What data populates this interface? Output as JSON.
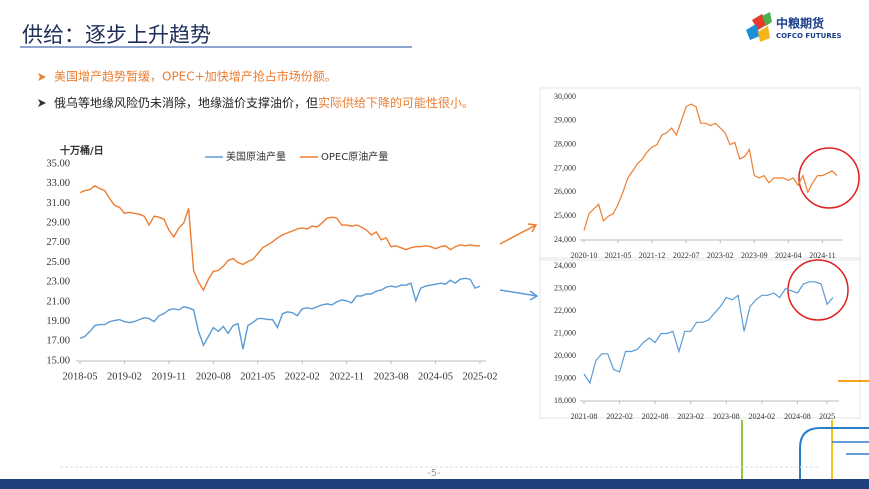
{
  "header": {
    "title": "供给：逐步上升趋势"
  },
  "logo": {
    "name": "中粮期货",
    "english": "COFCO FUTURES"
  },
  "bullets": [
    {
      "text": "美国增产趋势暂缓，OPEC+加快增产抢占市场份额。"
    },
    {
      "text": "俄乌等地缘风险仍未消除，地缘溢价支撑油价，但",
      "highlight": "实际供给下降的可能性很小。"
    }
  ],
  "page_number": "-5-",
  "chart_data": [
    {
      "type": "line",
      "y_label": "十万桶/日",
      "legend": "top",
      "categories": [
        "2018-05",
        null,
        null,
        null,
        null,
        null,
        null,
        null,
        null,
        "2019-02",
        null,
        null,
        null,
        null,
        null,
        null,
        null,
        null,
        "2019-11",
        null,
        null,
        null,
        null,
        null,
        null,
        null,
        null,
        "2020-08",
        null,
        null,
        null,
        null,
        null,
        null,
        null,
        null,
        "2021-05",
        null,
        null,
        null,
        null,
        null,
        null,
        null,
        null,
        "2022-02",
        null,
        null,
        null,
        null,
        null,
        null,
        null,
        null,
        "2022-11",
        null,
        null,
        null,
        null,
        null,
        null,
        null,
        null,
        "2023-08",
        null,
        null,
        null,
        null,
        null,
        null,
        null,
        null,
        "2024-05",
        null,
        null,
        null,
        null,
        null,
        null,
        null,
        null,
        "2025-02"
      ],
      "series": [
        {
          "name": "美国原油产量",
          "color": "#5b9bd5",
          "values": [
            17.3,
            17.5,
            18.0,
            18.6,
            18.7,
            18.7,
            19.0,
            19.1,
            19.2,
            19.0,
            18.9,
            19.0,
            19.2,
            19.4,
            19.3,
            19.0,
            19.6,
            19.8,
            20.2,
            20.3,
            20.2,
            20.5,
            20.4,
            20.2,
            18.0,
            16.6,
            17.5,
            18.4,
            18.0,
            18.5,
            17.8,
            18.6,
            18.8,
            16.2,
            18.6,
            18.9,
            19.3,
            19.3,
            19.2,
            19.2,
            18.4,
            19.8,
            20.0,
            19.9,
            19.6,
            20.3,
            20.4,
            20.3,
            20.5,
            20.7,
            20.8,
            20.7,
            21.0,
            21.2,
            21.1,
            20.9,
            21.6,
            21.6,
            21.8,
            21.8,
            22.1,
            22.2,
            22.5,
            22.6,
            22.5,
            22.7,
            22.7,
            22.9,
            21.1,
            22.4,
            22.6,
            22.7,
            22.8,
            22.9,
            22.8,
            23.2,
            22.9,
            23.3,
            23.4,
            23.3,
            22.4,
            22.6
          ]
        },
        {
          "name": "OPEC原油产量",
          "color": "#ed7d31",
          "values": [
            32.1,
            32.3,
            32.4,
            32.8,
            32.5,
            32.3,
            31.5,
            30.8,
            30.6,
            30.0,
            30.1,
            30.0,
            29.9,
            29.7,
            28.8,
            29.7,
            29.6,
            29.4,
            28.3,
            27.6,
            28.5,
            29.0,
            30.5,
            24.2,
            23.0,
            22.2,
            23.3,
            24.1,
            24.2,
            24.6,
            25.2,
            25.4,
            25.0,
            24.8,
            25.1,
            25.3,
            25.9,
            26.5,
            26.8,
            27.1,
            27.5,
            27.8,
            28.0,
            28.2,
            28.4,
            28.5,
            28.4,
            28.7,
            28.6,
            29.0,
            29.5,
            29.6,
            29.5,
            28.8,
            28.8,
            28.7,
            28.8,
            28.6,
            28.3,
            27.8,
            28.1,
            27.3,
            27.5,
            26.6,
            26.7,
            26.5,
            26.3,
            26.5,
            26.6,
            26.6,
            26.7,
            26.6,
            26.4,
            26.6,
            26.7,
            26.3,
            26.6,
            26.8,
            26.7,
            26.8,
            26.7,
            26.7
          ]
        }
      ],
      "ylim": [
        15,
        35
      ],
      "yticks": [
        {
          "value": 15,
          "label": "15.00"
        },
        {
          "value": 17,
          "label": "17.00"
        },
        {
          "value": 19,
          "label": "19.00"
        },
        {
          "value": 21,
          "label": "21.00"
        },
        {
          "value": 23,
          "label": "23.00"
        },
        {
          "value": 25,
          "label": "25.00"
        },
        {
          "value": 27,
          "label": "27.00"
        },
        {
          "value": 29,
          "label": "29.00"
        },
        {
          "value": 31,
          "label": "31.00"
        },
        {
          "value": 33,
          "label": "33.00"
        },
        {
          "value": 35,
          "label": "35.00"
        }
      ]
    },
    {
      "type": "line",
      "categories": [
        "2020-10",
        null,
        null,
        null,
        null,
        null,
        null,
        "2021-05",
        null,
        null,
        null,
        null,
        null,
        null,
        "2021-12",
        null,
        null,
        null,
        null,
        null,
        null,
        "2022-07",
        null,
        null,
        null,
        null,
        null,
        null,
        "2023-02",
        null,
        null,
        null,
        null,
        null,
        null,
        "2023-09",
        null,
        null,
        null,
        null,
        null,
        null,
        "2024-04",
        null,
        null,
        null,
        null,
        null,
        null,
        "2024-11",
        null,
        null,
        null
      ],
      "color": "#ed7d31",
      "values": [
        24400,
        25100,
        25300,
        25500,
        24800,
        25000,
        25100,
        25500,
        26000,
        26600,
        26900,
        27200,
        27400,
        27700,
        27900,
        28000,
        28400,
        28500,
        28700,
        28400,
        29000,
        29600,
        29700,
        29600,
        28900,
        28900,
        28800,
        28900,
        28700,
        28500,
        28000,
        28100,
        27400,
        27500,
        27800,
        26700,
        26600,
        26700,
        26400,
        26600,
        26600,
        26600,
        26500,
        26600,
        26300,
        26700,
        26000,
        26400,
        26700,
        26700,
        26800,
        26900,
        26700
      ],
      "ylim": [
        24000,
        30000
      ],
      "yticks": [
        {
          "value": 24000,
          "label": "24,000"
        },
        {
          "value": 25000,
          "label": "25,000"
        },
        {
          "value": 26000,
          "label": "26,000"
        },
        {
          "value": 27000,
          "label": "27,000"
        },
        {
          "value": 28000,
          "label": "28,000"
        },
        {
          "value": 29000,
          "label": "29,000"
        },
        {
          "value": 30000,
          "label": "30,000"
        }
      ]
    },
    {
      "type": "line",
      "categories": [
        "2021-08",
        null,
        null,
        null,
        null,
        null,
        "2022-02",
        null,
        null,
        null,
        null,
        null,
        "2022-08",
        null,
        null,
        null,
        null,
        null,
        "2023-02",
        null,
        null,
        null,
        null,
        null,
        "2023-08",
        null,
        null,
        null,
        null,
        null,
        "2024-02",
        null,
        null,
        null,
        null,
        null,
        "2024-08",
        null,
        null,
        null,
        null,
        "2025",
        null
      ],
      "color": "#5b9bd5",
      "values": [
        19200,
        18800,
        19800,
        20100,
        20100,
        19400,
        19300,
        20200,
        20200,
        20300,
        20600,
        20800,
        20600,
        21000,
        21000,
        21100,
        20200,
        21100,
        21100,
        21500,
        21500,
        21600,
        21900,
        22200,
        22600,
        22500,
        22700,
        21100,
        22200,
        22500,
        22700,
        22700,
        22800,
        22600,
        23000,
        22900,
        22800,
        23200,
        23300,
        23300,
        23200,
        22300,
        22600
      ],
      "ylim": [
        18000,
        24000
      ],
      "yticks": [
        {
          "value": 18000,
          "label": "18,000"
        },
        {
          "value": 19000,
          "label": "19,000"
        },
        {
          "value": 20000,
          "label": "20,000"
        },
        {
          "value": 21000,
          "label": "21,000"
        },
        {
          "value": 22000,
          "label": "22,000"
        },
        {
          "value": 23000,
          "label": "23,000"
        },
        {
          "value": 24000,
          "label": "24,000"
        }
      ]
    }
  ]
}
